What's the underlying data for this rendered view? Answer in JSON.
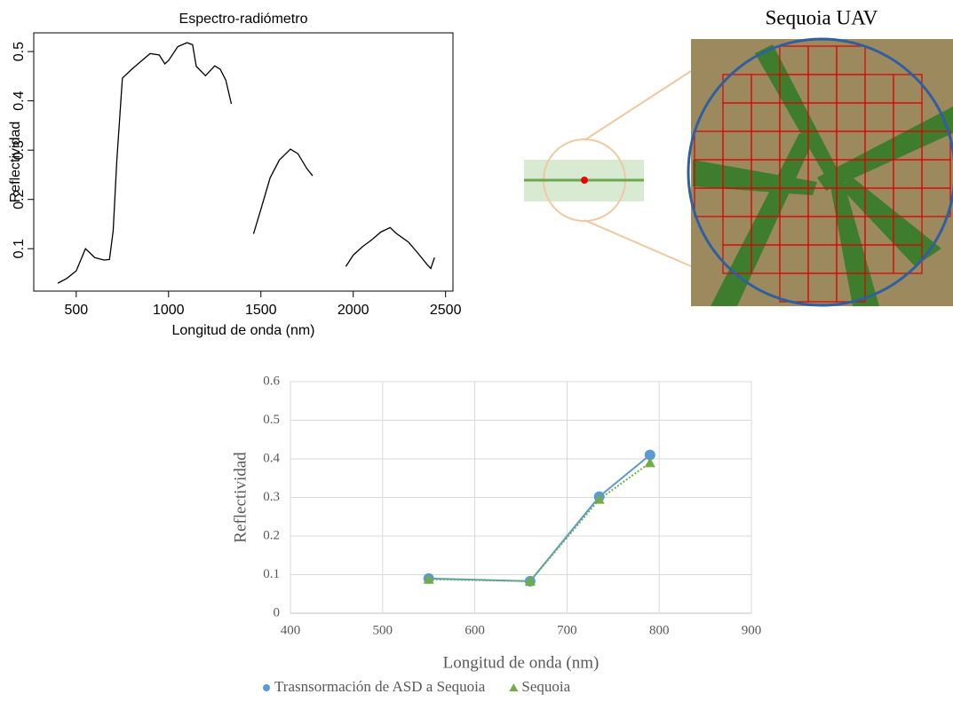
{
  "chart_data": [
    {
      "type": "line",
      "title": "Espectro-radiómetro",
      "x_label": "Longitud de onda (nm)",
      "y_label": "Reflectividad",
      "x": [
        400,
        450,
        500,
        530,
        550,
        570,
        600,
        650,
        680,
        700,
        720,
        750,
        800,
        900,
        950,
        980,
        1000,
        1050,
        1100,
        1130,
        1150,
        1200,
        1250,
        1280,
        1310,
        1340,
        1400,
        1460,
        1500,
        1550,
        1600,
        1660,
        1700,
        1750,
        1780,
        1850,
        1960,
        2000,
        2050,
        2100,
        2150,
        2200,
        2230,
        2300,
        2350,
        2400,
        2420,
        2440
      ],
      "values": [
        0.03,
        0.04,
        0.055,
        0.082,
        0.1,
        0.093,
        0.082,
        0.077,
        0.078,
        0.136,
        0.28,
        0.446,
        0.464,
        0.496,
        0.493,
        0.475,
        0.482,
        0.51,
        0.518,
        0.514,
        0.47,
        0.451,
        0.471,
        0.464,
        0.442,
        0.394,
        null,
        0.13,
        0.18,
        0.244,
        0.28,
        0.302,
        0.293,
        0.262,
        0.248,
        null,
        0.064,
        0.087,
        0.104,
        0.118,
        0.134,
        0.143,
        0.132,
        0.113,
        0.091,
        0.068,
        0.06,
        0.082
      ],
      "color": "#000000",
      "xlim": [
        270,
        2540
      ],
      "ylim": [
        0.014,
        0.538
      ],
      "xticks": [
        500,
        1000,
        1500,
        2000,
        2500
      ],
      "yticks": [
        0.1,
        0.2,
        0.3,
        0.4,
        0.5
      ],
      "grid": false,
      "box": true
    },
    {
      "type": "line",
      "x_label": "Longitud de onda (nm)",
      "y_label": "Reflectividad",
      "x": [
        550,
        660,
        735,
        790
      ],
      "series": [
        {
          "name": "Trasnsormación de ASD a Sequoia",
          "color": "#5b9bd5",
          "marker": "circle",
          "line_style": "solid",
          "values": [
            0.09,
            0.083,
            0.302,
            0.41
          ]
        },
        {
          "name": "Sequoia",
          "color": "#70ad47",
          "marker": "triangle",
          "line_style": "dotted",
          "values": [
            0.088,
            0.083,
            0.295,
            0.39
          ]
        }
      ],
      "xlim": [
        400,
        900
      ],
      "ylim": [
        0,
        0.6
      ],
      "xticks": [
        400,
        500,
        600,
        700,
        800,
        900
      ],
      "yticks": [
        0,
        0.1,
        0.2,
        0.3,
        0.4,
        0.5,
        0.6
      ],
      "grid": true,
      "legend": "bottom"
    }
  ],
  "photo": {
    "title": "Sequoia UAV"
  }
}
